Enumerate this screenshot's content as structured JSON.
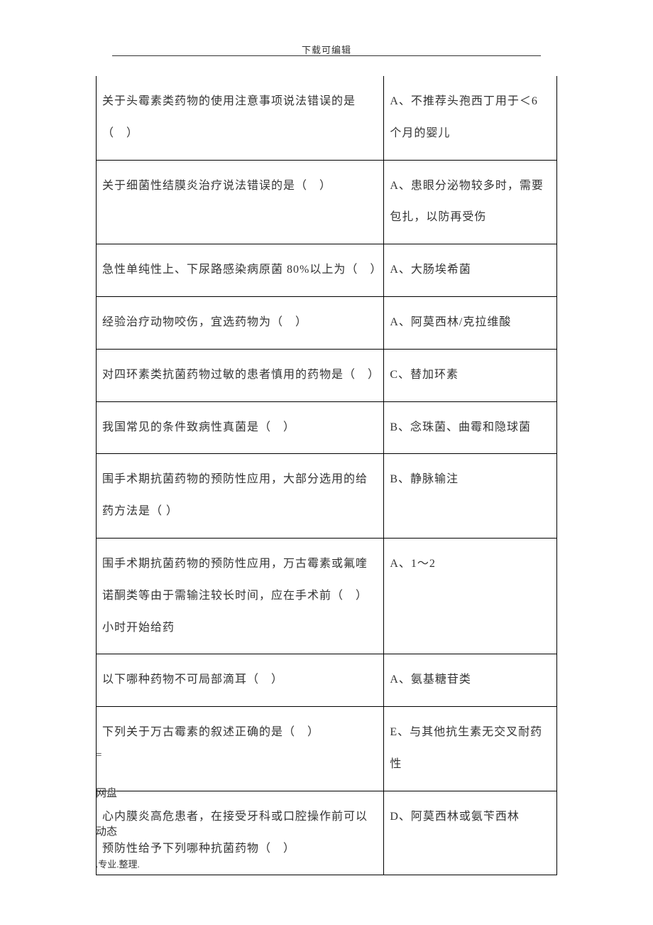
{
  "header": "下载可编辑",
  "table": {
    "rows": [
      {
        "question": "关于头霉素类药物的使用注意事项说法错误的是（　）",
        "answer": "A、不推荐头孢西丁用于＜6 个月的婴儿"
      },
      {
        "question": "关于细菌性结膜炎治疗说法错误的是（　）",
        "answer": "A、患眼分泌物较多时，需要包扎，以防再受伤"
      },
      {
        "question": "急性单纯性上、下尿路感染病原菌 80%以上为（　）",
        "answer": "A、大肠埃希菌"
      },
      {
        "question": "经验治疗动物咬伤，宜选药物为（　）",
        "answer": "A、阿莫西林/克拉维酸"
      },
      {
        "question": "对四环素类抗菌药物过敏的患者慎用的药物是（　）",
        "answer": "C、替加环素"
      },
      {
        "question": "我国常见的条件致病性真菌是（　）",
        "answer": "B、念珠菌、曲霉和隐球菌"
      },
      {
        "question": "围手术期抗菌药物的预防性应用，大部分选用的给药方法是（ ）",
        "answer": "B、静脉输注"
      },
      {
        "question": "围手术期抗菌药物的预防性应用，万古霉素或氟喹诺酮类等由于需输注较长时间，应在手术前（　）小时开始给药",
        "answer": "A、1～2"
      },
      {
        "question": "以下哪种药物不可局部滴耳（　）",
        "answer": "A、氨基糖苷类"
      },
      {
        "question": "下列关于万古霉素的叙述正确的是（　）",
        "answer": "E、与其他抗生素无交叉耐药性"
      },
      {
        "question": "心内膜炎高危患者，在接受牙科或口腔操作前可以预防性给予下列哪种抗菌药物（　）",
        "answer": "D、阿莫西林或氨苄西林"
      }
    ]
  },
  "footer": {
    "line1": "=",
    "line2": "网盘",
    "line3": "动态"
  },
  "bottomNote": ".专业.整理."
}
